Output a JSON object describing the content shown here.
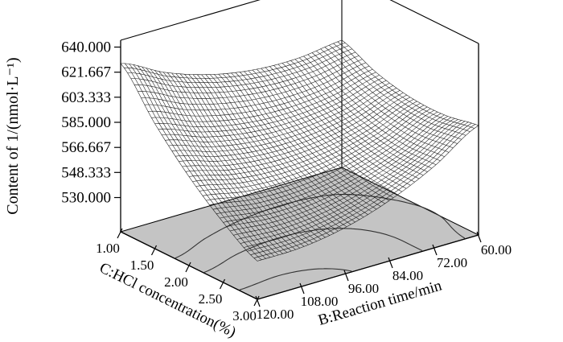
{
  "chart_data": {
    "type": "surface",
    "title": "",
    "z_axis": {
      "label": "Content of 1/(nmol·L⁻¹)",
      "tick_labels": [
        "530.000",
        "548.333",
        "566.667",
        "585.000",
        "603.333",
        "621.667",
        "640.000"
      ],
      "tick_values": [
        530,
        548.333,
        566.667,
        585,
        603.333,
        621.667,
        640
      ],
      "range": [
        530,
        640
      ]
    },
    "c_axis": {
      "label": "C:HCl concentration(%)",
      "tick_labels": [
        "1.00",
        "1.50",
        "2.00",
        "2.50",
        "3.00"
      ],
      "tick_values": [
        1,
        1.5,
        2,
        2.5,
        3
      ]
    },
    "b_axis": {
      "label": "B:Reaction time/min",
      "tick_labels": [
        "120.00",
        "108.00",
        "96.00",
        "84.00",
        "72.00",
        "60.00"
      ],
      "tick_values": [
        120,
        108,
        96,
        84,
        72,
        60
      ]
    },
    "surface": {
      "c_values": [
        1,
        1.5,
        2,
        2.5,
        3
      ],
      "b_values": [
        60,
        72,
        84,
        96,
        108,
        120
      ],
      "z_grid": [
        [
          598.0,
          594.1,
          595.1,
          601.1,
          612.1,
          628.0
        ],
        [
          586.9,
          578.9,
          575.8,
          577.7,
          584.6,
          596.4
        ],
        [
          581.0,
          568.9,
          561.7,
          559.5,
          562.3,
          570.0
        ],
        [
          580.4,
          564.2,
          552.9,
          546.6,
          545.3,
          548.9
        ],
        [
          585.0,
          564.7,
          549.3,
          538.9,
          533.5,
          533.0
        ]
      ]
    },
    "floor_contour_levels": [
      540,
      560,
      580
    ],
    "colors": {
      "mesh": "#111111",
      "floor": "#c4c4c4",
      "contour": "#333333",
      "axis": "#000000",
      "background": "#ffffff"
    }
  }
}
